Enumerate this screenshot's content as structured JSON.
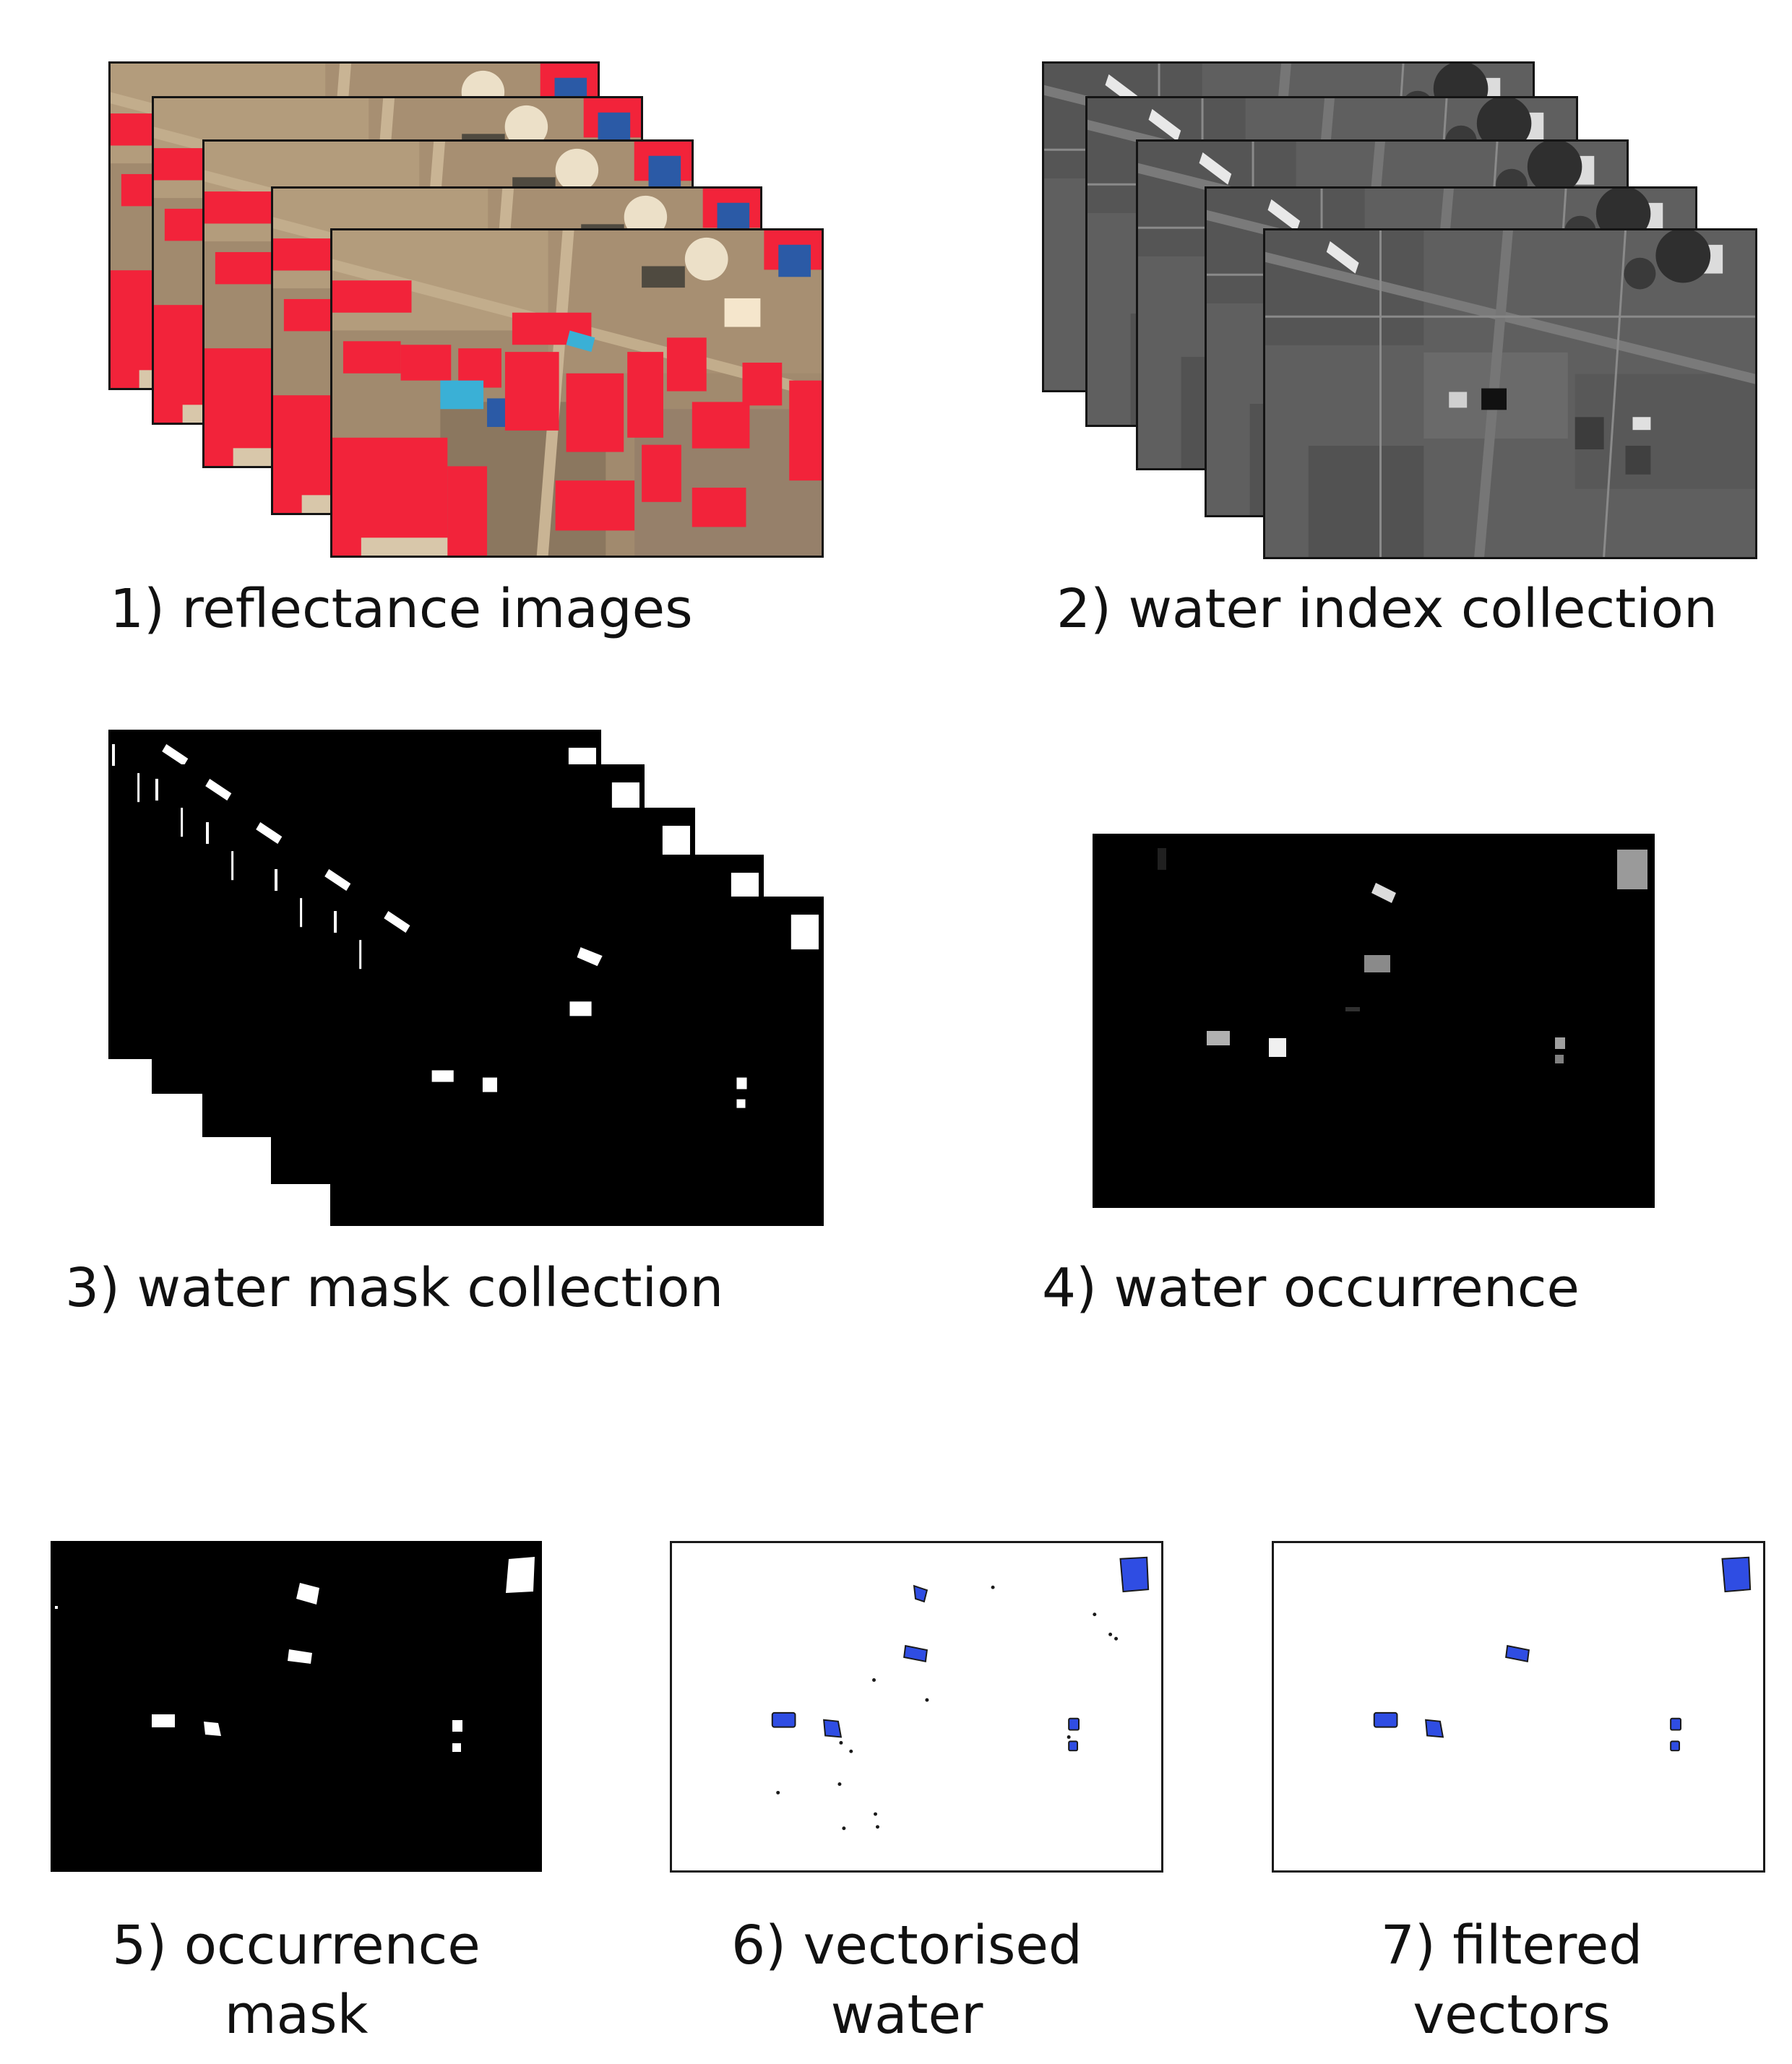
{
  "figure": {
    "steps": [
      {
        "number": "1)",
        "label": "reflectance images",
        "layers": 5
      },
      {
        "number": "2)",
        "label": "water index collection",
        "layers": 5
      },
      {
        "number": "3)",
        "label": "water mask collection",
        "layers": 5
      },
      {
        "number": "4)",
        "label": "water occurrence"
      },
      {
        "number": "5)",
        "label_lines": [
          "occurrence",
          "mask"
        ]
      },
      {
        "number": "6)",
        "label_lines": [
          "vectorised",
          "water"
        ]
      },
      {
        "number": "7)",
        "label_lines": [
          "filtered",
          "vectors"
        ]
      }
    ]
  },
  "colors": {
    "vegetation_red": "#f2233a",
    "soil_brown": "#9c866c",
    "water_cyan": "#3ab0d6",
    "water_deep_blue": "#2b5aa6",
    "index_gray": "#5f5f5f",
    "mask_black": "#000000",
    "mask_white": "#ffffff",
    "vector_fill_blue": "#2f4de3",
    "vector_outline": "#1a1a1a"
  },
  "icons": {
    "reflectance": "false-color-satellite-tile",
    "index": "grayscale-index-tile",
    "mask": "binary-mask-tile",
    "vector": "polygon-vector-tile"
  }
}
